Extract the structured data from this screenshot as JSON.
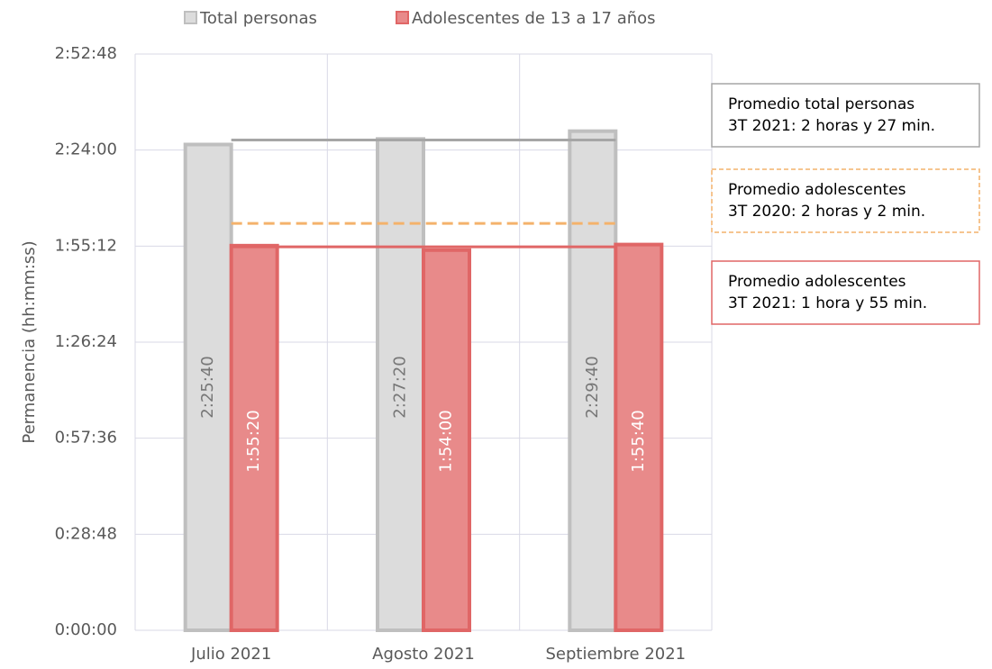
{
  "chart_data": {
    "type": "bar",
    "y_label": "Permanencia (hh:mm:ss)",
    "categories": [
      "Julio 2021",
      "Agosto 2021",
      "Septiembre 2021"
    ],
    "series": [
      {
        "name": "Total personas",
        "color": "#dcdcdc",
        "border": "#bfbfbf",
        "label_color": "#777777",
        "values": [
          8740,
          8840,
          8980
        ],
        "value_labels": [
          "2:25:40",
          "2:27:20",
          "2:29:40"
        ]
      },
      {
        "name": "Adolescentes de 13 a 17 años",
        "color": "#e88a8a",
        "border": "#e06666",
        "label_color": "#ffffff",
        "values": [
          6920,
          6840,
          6940
        ],
        "value_labels": [
          "1:55:20",
          "1:54:00",
          "1:55:40"
        ]
      }
    ],
    "ylim": [
      0,
      10368
    ],
    "yticks": [
      {
        "value": 0,
        "label": "0:00:00"
      },
      {
        "value": 1728,
        "label": "0:28:48"
      },
      {
        "value": 3456,
        "label": "0:57:36"
      },
      {
        "value": 5184,
        "label": "1:26:24"
      },
      {
        "value": 6912,
        "label": "1:55:12"
      },
      {
        "value": 8640,
        "label": "2:24:00"
      },
      {
        "value": 10368,
        "label": "2:52:48"
      }
    ],
    "grid": true,
    "legend": "top",
    "reference_lines": [
      {
        "value": 8820,
        "color": "#a6a6a6",
        "dashed": false,
        "label_lines": [
          "Promedio total personas",
          "3T 2021: 2 horas y 27 min."
        ]
      },
      {
        "value": 7320,
        "color": "#f4b26b",
        "dashed": true,
        "label_lines": [
          "Promedio adolescentes",
          "3T 2020: 2 horas y 2 min."
        ]
      },
      {
        "value": 6900,
        "color": "#e06666",
        "dashed": false,
        "label_lines": [
          "Promedio adolescentes",
          "3T 2021: 1 hora y 55 min."
        ]
      }
    ]
  }
}
